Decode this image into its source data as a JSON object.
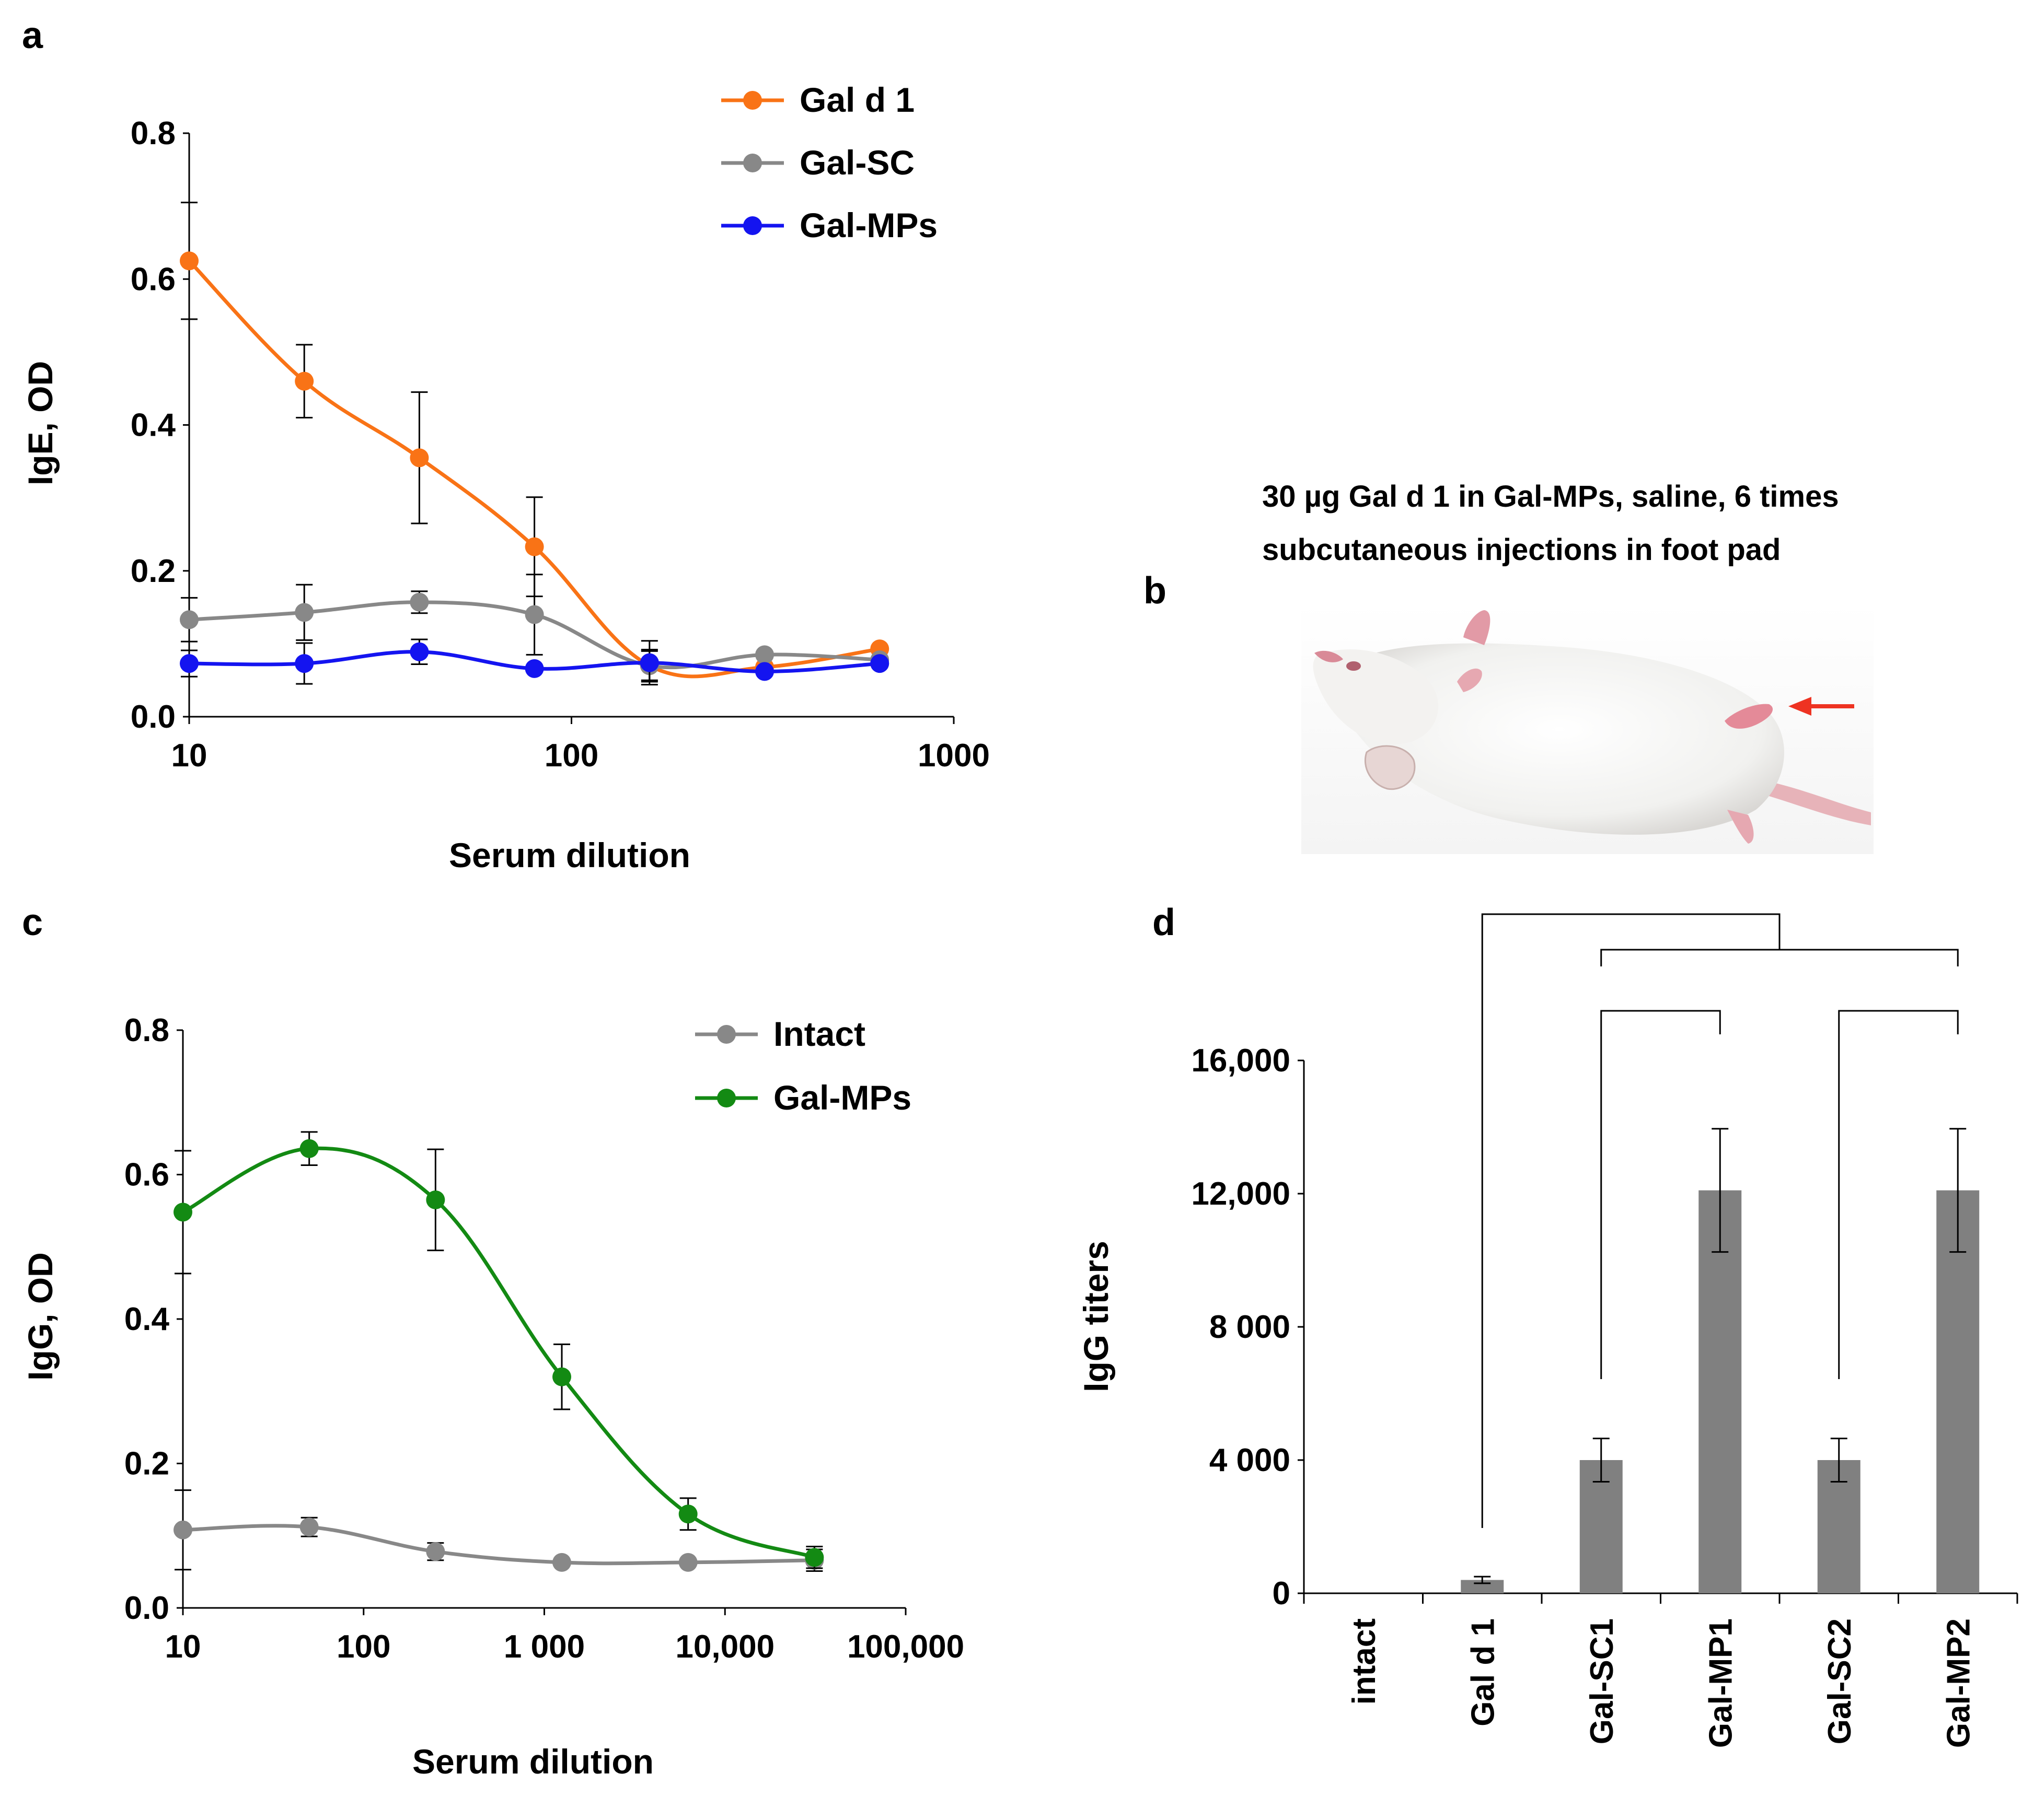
{
  "panel_labels": {
    "a": "a",
    "b": "b",
    "c": "c",
    "d": "d"
  },
  "colors": {
    "orange": "#f97316",
    "gray": "#888888",
    "blue": "#1414f0",
    "green": "#138a13",
    "bar": "#808080",
    "arrow": "#ee3322"
  },
  "chart_data": [
    {
      "panel": "a",
      "type": "line",
      "title": "",
      "xlabel": "Serum dilution",
      "ylabel": "IgE, OD",
      "xscale": "log",
      "xlim": [
        10,
        1000
      ],
      "ylim": [
        0,
        0.8
      ],
      "xticks": [
        10,
        100,
        1000
      ],
      "xtick_labels": [
        "10",
        "100",
        "1000"
      ],
      "yticks": [
        0,
        0.2,
        0.4,
        0.6,
        0.8
      ],
      "ytick_labels": [
        "0.0",
        "0.2",
        "0.4",
        "0.6",
        "0.8"
      ],
      "legend_position": "top-right",
      "series": [
        {
          "name": "Gal d 1",
          "color": "#f97316",
          "x": [
            10,
            20,
            40,
            80,
            160,
            320,
            640
          ],
          "y": [
            0.625,
            0.46,
            0.355,
            0.233,
            0.07,
            0.068,
            0.093
          ],
          "err": [
            0.08,
            0.05,
            0.09,
            0.068,
            0.022,
            0,
            0
          ]
        },
        {
          "name": "Gal-SC",
          "color": "#888888",
          "x": [
            10,
            20,
            40,
            80,
            160,
            320,
            640
          ],
          "y": [
            0.133,
            0.143,
            0.157,
            0.14,
            0.07,
            0.085,
            0.078
          ],
          "err": [
            0.03,
            0.038,
            0.015,
            0.055,
            0.02,
            0,
            0
          ]
        },
        {
          "name": "Gal-MPs",
          "color": "#1414f0",
          "x": [
            10,
            20,
            40,
            80,
            160,
            320,
            640
          ],
          "y": [
            0.073,
            0.073,
            0.089,
            0.066,
            0.074,
            0.062,
            0.073
          ],
          "err": [
            0.018,
            0.028,
            0.017,
            0,
            0.03,
            0,
            0
          ]
        }
      ]
    },
    {
      "panel": "c",
      "type": "line",
      "title": "",
      "xlabel": "Serum dilution",
      "ylabel": "IgG, OD",
      "xscale": "log",
      "xlim": [
        10,
        100000
      ],
      "ylim": [
        0,
        0.8
      ],
      "xticks": [
        10,
        100,
        1000,
        10000,
        100000
      ],
      "xtick_labels": [
        "10",
        "100",
        "1 000",
        "10,000",
        "100,000"
      ],
      "yticks": [
        0,
        0.2,
        0.4,
        0.6,
        0.8
      ],
      "ytick_labels": [
        "0.0",
        "0.2",
        "0.4",
        "0.6",
        "0.8"
      ],
      "legend_position": "top-right",
      "series": [
        {
          "name": "Intact",
          "color": "#888888",
          "x": [
            10,
            50,
            250,
            1250,
            6250,
            31250
          ],
          "y": [
            0.108,
            0.112,
            0.078,
            0.063,
            0.063,
            0.066
          ],
          "err": [
            0.055,
            0.013,
            0.012,
            0,
            0,
            0.015
          ]
        },
        {
          "name": "Gal-MPs",
          "color": "#138a13",
          "x": [
            10,
            50,
            250,
            1250,
            6250,
            31250
          ],
          "y": [
            0.548,
            0.636,
            0.565,
            0.32,
            0.13,
            0.07
          ],
          "err": [
            0.085,
            0.023,
            0.07,
            0.045,
            0.022,
            0.015
          ]
        }
      ]
    },
    {
      "panel": "d",
      "type": "bar",
      "title": "",
      "xlabel": "",
      "ylabel": "IgG titers",
      "ylim": [
        0,
        16000
      ],
      "yticks": [
        0,
        4000,
        8000,
        12000,
        16000
      ],
      "ytick_labels": [
        "0",
        "4 000",
        "8 000",
        "12,000",
        "16,000"
      ],
      "categories": [
        "intact",
        "Gal d 1",
        "Gal-SC1",
        "Gal-MP1",
        "Gal-SC2",
        "Gal-MP2"
      ],
      "values": [
        0,
        400,
        4000,
        12100,
        4000,
        12100
      ],
      "err": [
        0,
        100,
        650,
        1850,
        650,
        1850
      ],
      "color": "#808080",
      "brackets": [
        {
          "from": "Gal-SC1",
          "to": "Gal-MP1"
        },
        {
          "from": "Gal-SC2",
          "to": "Gal-MP2"
        },
        {
          "from": "Gal-SC1",
          "to": "Gal-MP2"
        },
        {
          "from": "Gal d 1",
          "to": "group"
        }
      ]
    }
  ],
  "panel_b": {
    "caption_line1": "30 µg Gal d 1 in Gal-MPs, saline, 6 times",
    "caption_line2": "subcutaneous injections in foot pad",
    "image_description": "mouse-photo"
  }
}
